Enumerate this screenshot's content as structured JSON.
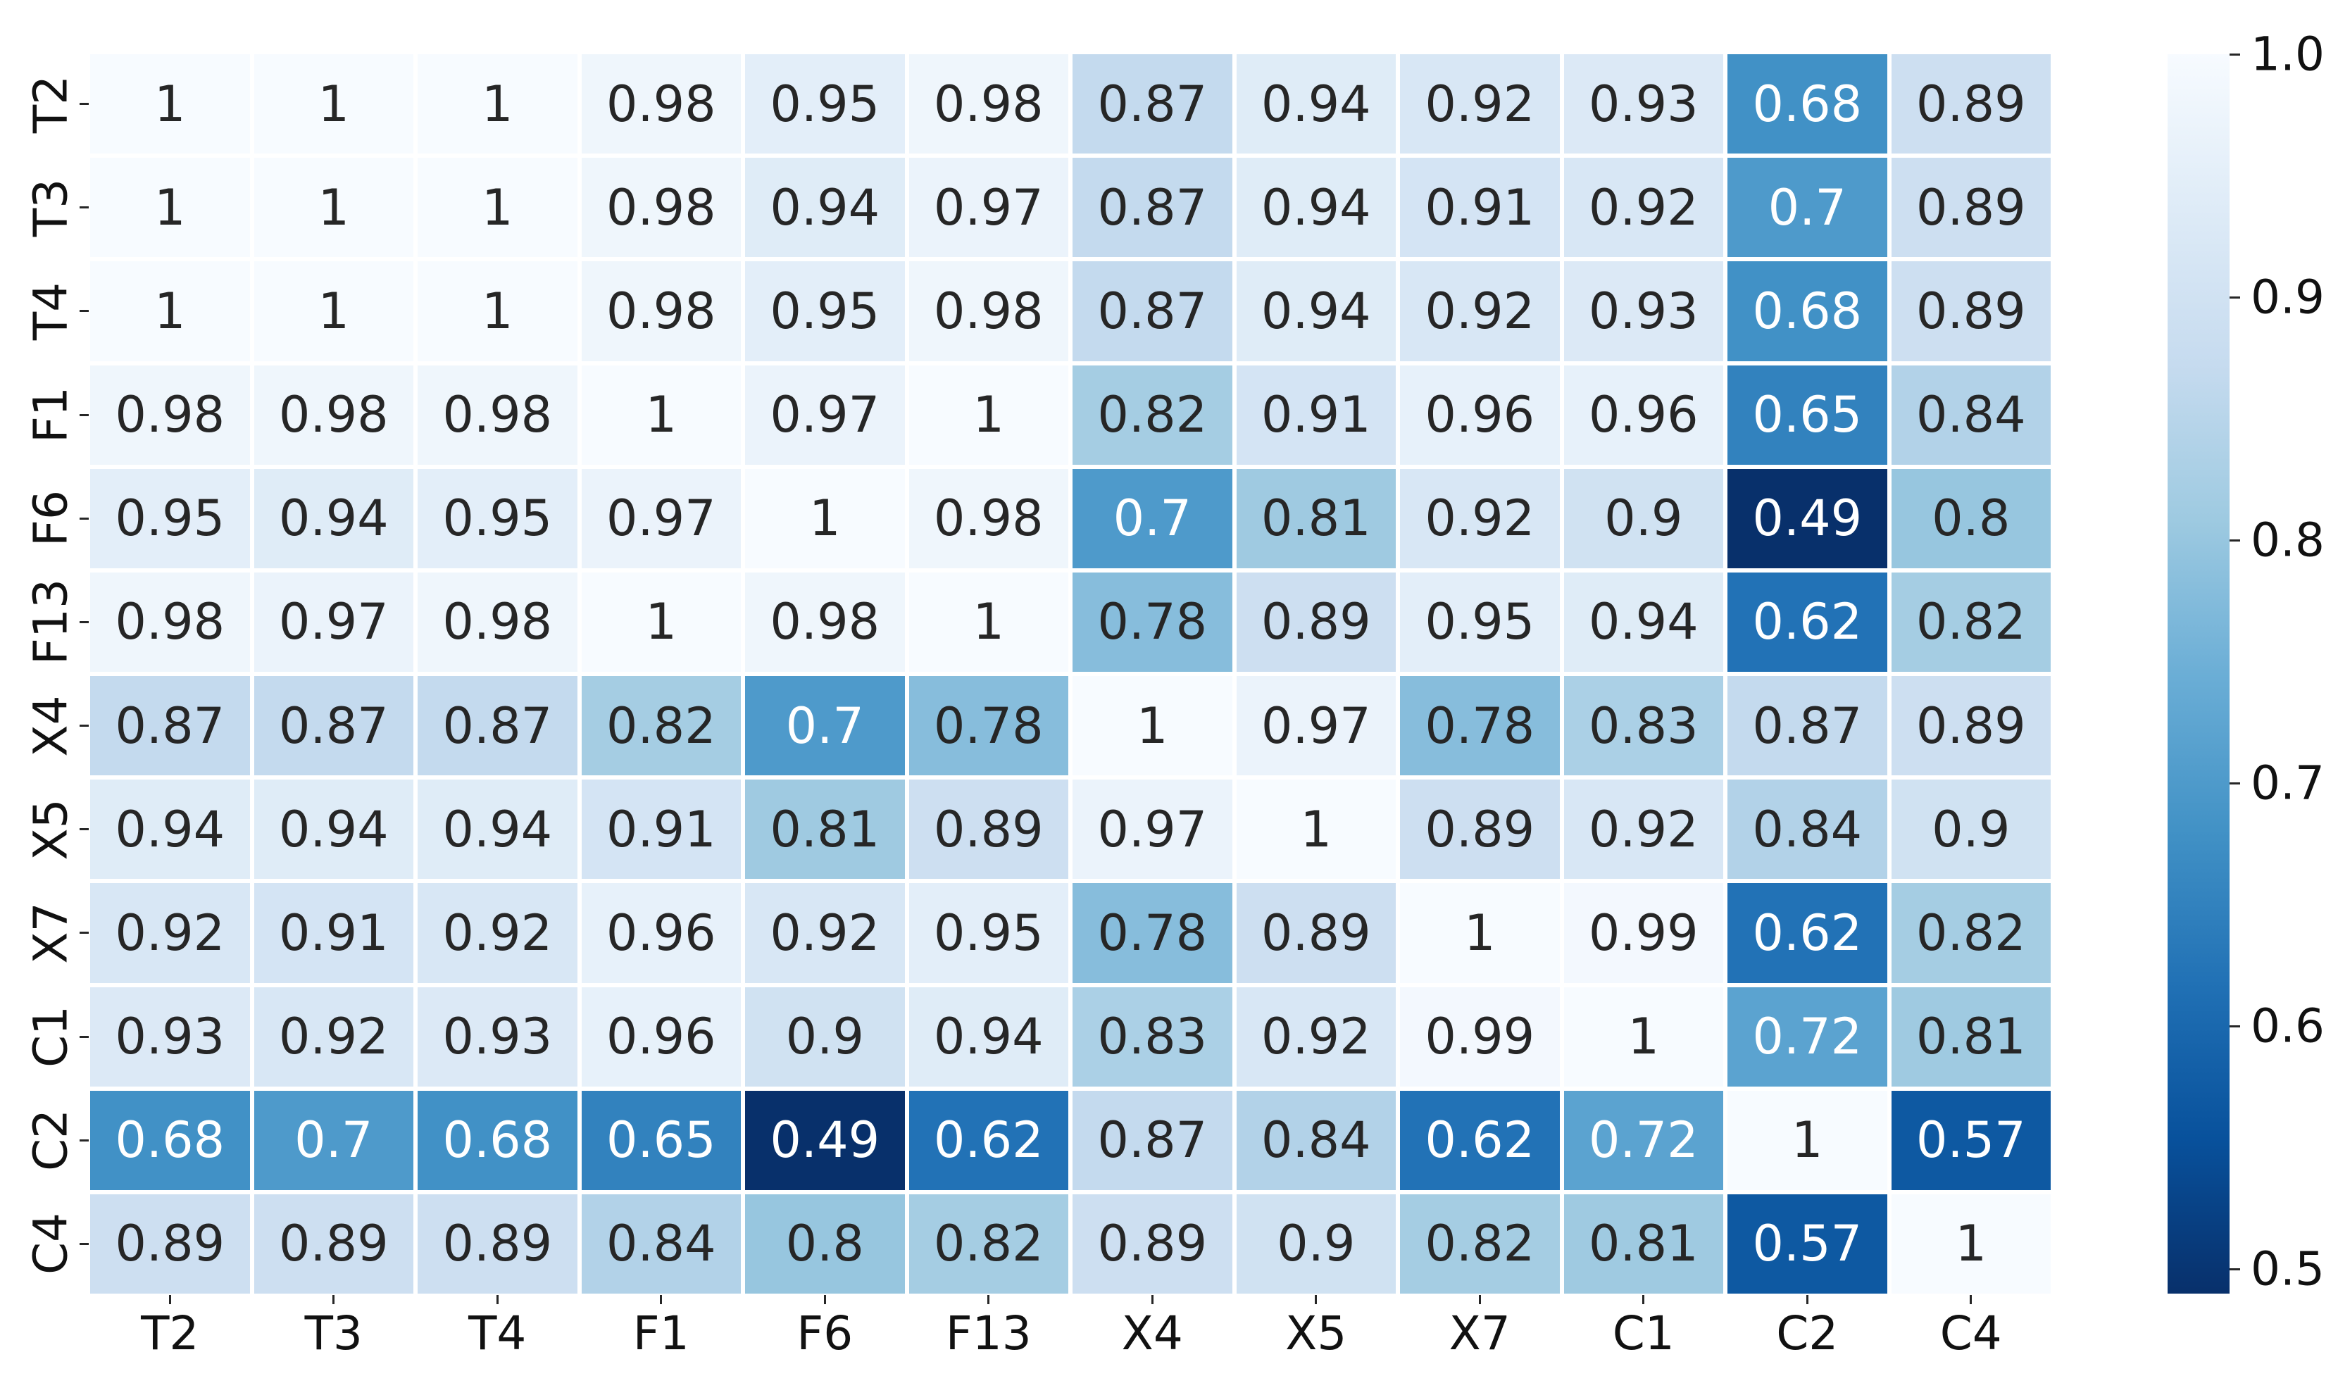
{
  "chart_data": {
    "type": "heatmap",
    "title": "",
    "xlabel": "",
    "ylabel": "",
    "x_categories": [
      "T2",
      "T3",
      "T4",
      "F1",
      "F6",
      "F13",
      "X4",
      "X5",
      "X7",
      "C1",
      "C2",
      "C4"
    ],
    "y_categories": [
      "T2",
      "T3",
      "T4",
      "F1",
      "F6",
      "F13",
      "X4",
      "X5",
      "X7",
      "C1",
      "C2",
      "C4"
    ],
    "matrix": [
      [
        1,
        1,
        1,
        0.98,
        0.95,
        0.98,
        0.87,
        0.94,
        0.92,
        0.93,
        0.68,
        0.89
      ],
      [
        1,
        1,
        1,
        0.98,
        0.94,
        0.97,
        0.87,
        0.94,
        0.91,
        0.92,
        0.7,
        0.89
      ],
      [
        1,
        1,
        1,
        0.98,
        0.95,
        0.98,
        0.87,
        0.94,
        0.92,
        0.93,
        0.68,
        0.89
      ],
      [
        0.98,
        0.98,
        0.98,
        1,
        0.97,
        1,
        0.82,
        0.91,
        0.96,
        0.96,
        0.65,
        0.84
      ],
      [
        0.95,
        0.94,
        0.95,
        0.97,
        1,
        0.98,
        0.7,
        0.81,
        0.92,
        0.9,
        0.49,
        0.8
      ],
      [
        0.98,
        0.97,
        0.98,
        1,
        0.98,
        1,
        0.78,
        0.89,
        0.95,
        0.94,
        0.62,
        0.82
      ],
      [
        0.87,
        0.87,
        0.87,
        0.82,
        0.7,
        0.78,
        1,
        0.97,
        0.78,
        0.83,
        0.87,
        0.89
      ],
      [
        0.94,
        0.94,
        0.94,
        0.91,
        0.81,
        0.89,
        0.97,
        1,
        0.89,
        0.92,
        0.84,
        0.9
      ],
      [
        0.92,
        0.91,
        0.92,
        0.96,
        0.92,
        0.95,
        0.78,
        0.89,
        1,
        0.99,
        0.62,
        0.82
      ],
      [
        0.93,
        0.92,
        0.93,
        0.96,
        0.9,
        0.94,
        0.83,
        0.92,
        0.99,
        1,
        0.72,
        0.81
      ],
      [
        0.68,
        0.7,
        0.68,
        0.65,
        0.49,
        0.62,
        0.87,
        0.84,
        0.62,
        0.72,
        1,
        0.57
      ],
      [
        0.89,
        0.89,
        0.89,
        0.84,
        0.8,
        0.82,
        0.89,
        0.9,
        0.82,
        0.81,
        0.57,
        1
      ]
    ],
    "colormap": "Blues_r",
    "vmin": 0.49,
    "vmax": 1.0,
    "colormap_stops_light_to_dark": [
      "#f7fbff",
      "#deebf7",
      "#c6dbef",
      "#9ecae1",
      "#6baed6",
      "#4292c6",
      "#2171b5",
      "#08519c",
      "#08306b"
    ],
    "colorbar_ticks": [
      {
        "value": 1.0,
        "label": "1.0"
      },
      {
        "value": 0.9,
        "label": "0.9"
      },
      {
        "value": 0.8,
        "label": "0.8"
      },
      {
        "value": 0.7,
        "label": "0.7"
      },
      {
        "value": 0.6,
        "label": "0.6"
      },
      {
        "value": 0.5,
        "label": "0.5"
      }
    ],
    "annotation_dark_color": "#262626",
    "annotation_light_color": "#ffffff",
    "grid_gap_color": "#ffffff",
    "legend_position": "right-colorbar",
    "grid": false
  }
}
